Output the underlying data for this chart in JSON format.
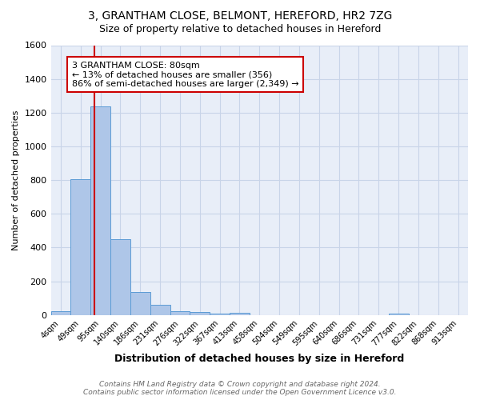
{
  "title_line1": "3, GRANTHAM CLOSE, BELMONT, HEREFORD, HR2 7ZG",
  "title_line2": "Size of property relative to detached houses in Hereford",
  "xlabel": "Distribution of detached houses by size in Hereford",
  "ylabel": "Number of detached properties",
  "bar_labels": [
    "4sqm",
    "49sqm",
    "95sqm",
    "140sqm",
    "186sqm",
    "231sqm",
    "276sqm",
    "322sqm",
    "367sqm",
    "413sqm",
    "458sqm",
    "504sqm",
    "549sqm",
    "595sqm",
    "640sqm",
    "686sqm",
    "731sqm",
    "777sqm",
    "822sqm",
    "868sqm",
    "913sqm"
  ],
  "bar_values": [
    25,
    805,
    1235,
    450,
    135,
    60,
    25,
    20,
    10,
    15,
    0,
    0,
    0,
    0,
    0,
    0,
    0,
    10,
    0,
    0,
    0
  ],
  "bar_color": "#aec6e8",
  "bar_edge_color": "#5b9bd5",
  "property_sqm": 80,
  "annotation_text": "3 GRANTHAM CLOSE: 80sqm\n← 13% of detached houses are smaller (356)\n86% of semi-detached houses are larger (2,349) →",
  "annotation_box_color": "white",
  "annotation_box_edge": "#cc0000",
  "red_line_color": "#cc0000",
  "grid_color": "#c8d4e8",
  "background_color": "#e8eef8",
  "footer_line1": "Contains HM Land Registry data © Crown copyright and database right 2024.",
  "footer_line2": "Contains public sector information licensed under the Open Government Licence v3.0.",
  "ylim": [
    0,
    1600
  ],
  "yticks": [
    0,
    200,
    400,
    600,
    800,
    1000,
    1200,
    1400,
    1600
  ]
}
